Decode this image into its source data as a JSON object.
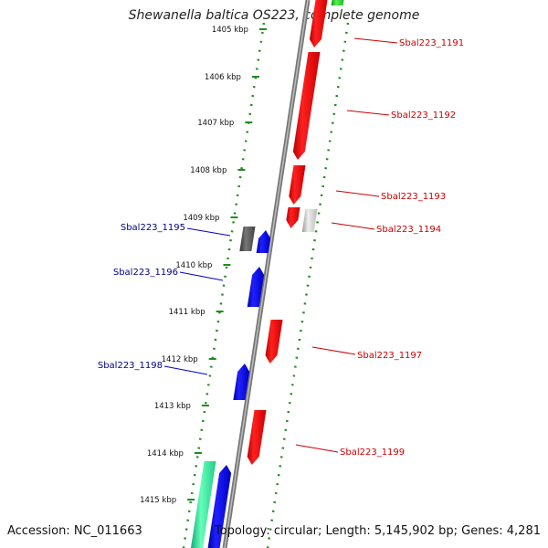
{
  "title": "Shewanella baltica OS223, complete genome",
  "footer": {
    "accession": "Accession: NC_011663",
    "summary": "Topology: circular; Length: 5,145,902 bp; Genes: 4,281"
  },
  "kbp_ticks": [
    "1405 kbp",
    "1406 kbp",
    "1407 kbp",
    "1408 kbp",
    "1409 kbp",
    "1410 kbp",
    "1411 kbp",
    "1412 kbp",
    "1413 kbp",
    "1414 kbp",
    "1415 kbp"
  ],
  "genes_forward_labels": [
    {
      "name": "Sbal223_1195",
      "color": "#00008b"
    },
    {
      "name": "Sbal223_1196",
      "color": "#00008b"
    },
    {
      "name": "Sbal223_1198",
      "color": "#00008b"
    }
  ],
  "genes_reverse_labels": [
    {
      "name": "Sbal223_1191",
      "color": "#cc0000"
    },
    {
      "name": "Sbal223_1192",
      "color": "#cc0000"
    },
    {
      "name": "Sbal223_1193",
      "color": "#cc0000"
    },
    {
      "name": "Sbal223_1194",
      "color": "#cc0000"
    },
    {
      "name": "Sbal223_1197",
      "color": "#cc0000"
    },
    {
      "name": "Sbal223_1199",
      "color": "#cc0000"
    }
  ],
  "colors": {
    "reverse_gene": "#ff0000",
    "forward_gene": "#0000ff",
    "grey_gene": "#555555",
    "light_grey_gene": "#cccccc",
    "teal_gene": "#33ee99",
    "green_gene": "#22cc22",
    "backbone": "#888888",
    "tick_dots": "#228b22"
  }
}
